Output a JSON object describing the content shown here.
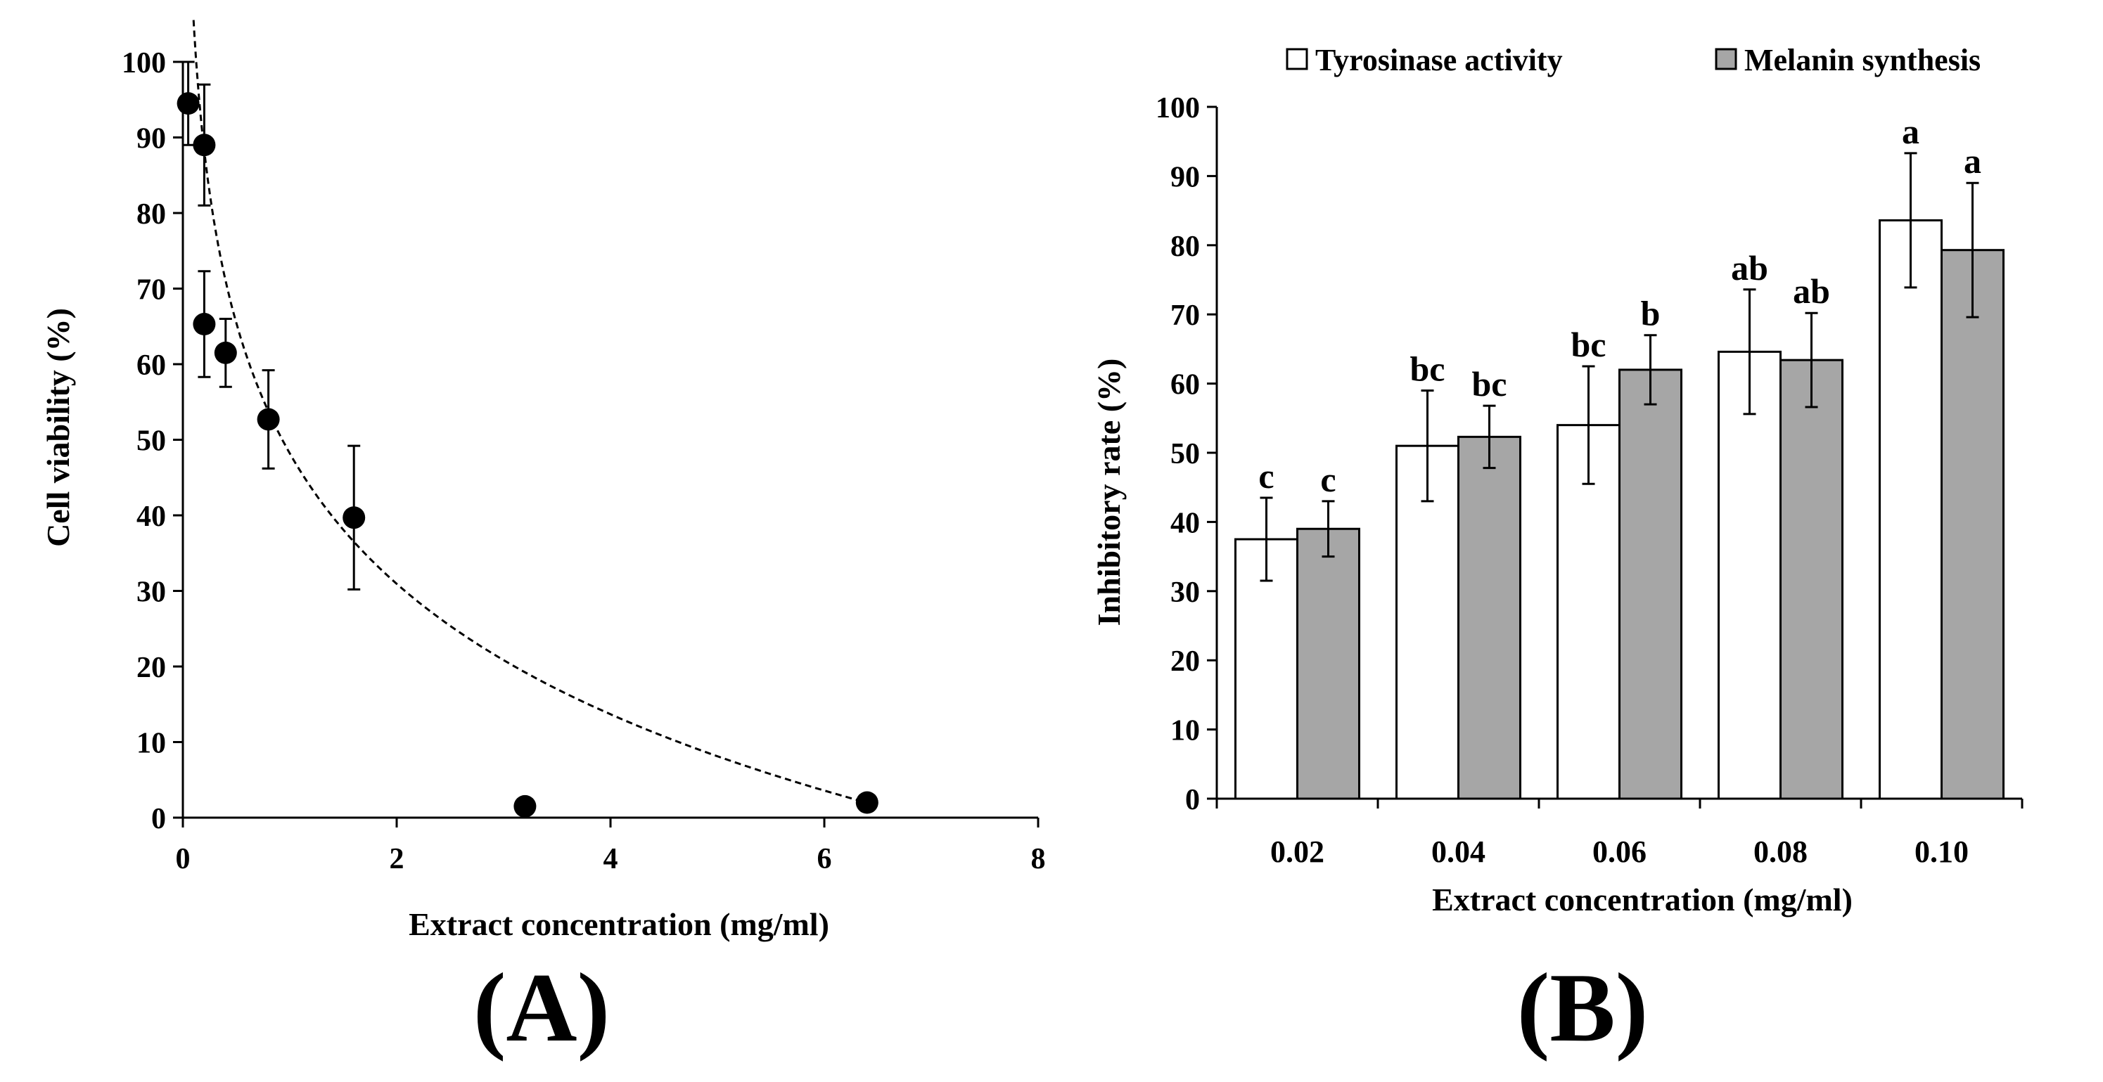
{
  "chart_data": [
    {
      "type": "scatter",
      "panel_label": "(A)",
      "xlabel": "Extract concentration (mg/ml)",
      "ylabel": "Cell viability (%)",
      "xlim": [
        0,
        8
      ],
      "ylim": [
        0,
        100
      ],
      "xticks": [
        "0",
        "2",
        "4",
        "6",
        "8"
      ],
      "yticks": [
        "0",
        "10",
        "20",
        "30",
        "40",
        "50",
        "60",
        "70",
        "80",
        "90",
        "100"
      ],
      "grid": false,
      "points": [
        {
          "x": 0.05,
          "y": 94.5,
          "err": 5.5
        },
        {
          "x": 0.2,
          "y": 89,
          "err": 8
        },
        {
          "x": 0.2,
          "y": 65.3,
          "err": 7
        },
        {
          "x": 0.4,
          "y": 61.5,
          "err": 4.5
        },
        {
          "x": 0.8,
          "y": 52.7,
          "err": 6.5
        },
        {
          "x": 1.6,
          "y": 39.7,
          "err": 9.5
        },
        {
          "x": 3.2,
          "y": 1.5,
          "err": 0
        },
        {
          "x": 6.4,
          "y": 2,
          "err": 0
        }
      ],
      "trendline": {
        "type": "logarithmic",
        "style": "dashed",
        "equation": "y = 48.2 - 24.9*ln(x)",
        "x_range": [
          0.1,
          6.4
        ]
      }
    },
    {
      "type": "bar",
      "panel_label": "(B)",
      "xlabel": "Extract concentration (mg/ml)",
      "ylabel": "Inhibitory rate (%)",
      "ylim": [
        0,
        100
      ],
      "yticks": [
        "0",
        "10",
        "20",
        "30",
        "40",
        "50",
        "60",
        "70",
        "80",
        "90",
        "100"
      ],
      "grid": false,
      "legend_position": "top",
      "categories": [
        "0.02",
        "0.04",
        "0.06",
        "0.08",
        "0.10"
      ],
      "series": [
        {
          "name": "Tyrosinase activity",
          "color": "#ffffff",
          "values": [
            37.5,
            51,
            54,
            64.6,
            83.6
          ],
          "errors": [
            6,
            8,
            8.5,
            9,
            9.7
          ],
          "labels": [
            "c",
            "bc",
            "bc",
            "ab",
            "a"
          ]
        },
        {
          "name": "Melanin synthesis",
          "color": "#a6a6a6",
          "values": [
            39,
            52.3,
            62,
            63.4,
            79.3
          ],
          "errors": [
            4,
            4.5,
            5,
            6.8,
            9.7
          ],
          "labels": [
            "c",
            "bc",
            "b",
            "ab",
            "a"
          ]
        }
      ]
    }
  ]
}
